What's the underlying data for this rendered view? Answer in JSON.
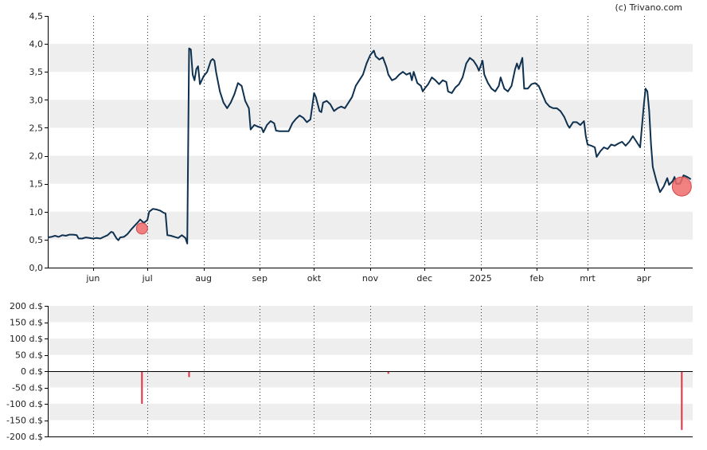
{
  "credit": "(c) Trivano.com",
  "colors": {
    "line": "#0f3150",
    "band": "#eeeeee",
    "marker": "#f06b6b",
    "volume": "#e03040",
    "axis": "#000000",
    "grid": "#333333"
  },
  "chart_data": [
    {
      "type": "line",
      "title": "",
      "xlabel": "",
      "ylabel": "",
      "ylim": [
        0,
        4.5
      ],
      "y_ticks": [
        "0,0",
        "0,5",
        "1,0",
        "1,5",
        "2,0",
        "2,5",
        "3,0",
        "3,5",
        "4,0",
        "4,5"
      ],
      "x_ticks": [
        "jun",
        "jul",
        "aug",
        "sep",
        "okt",
        "nov",
        "dec",
        "2025",
        "feb",
        "mrt",
        "apr"
      ],
      "series": [
        {
          "points": [
            [
              "2024-05-07",
              0.54
            ],
            [
              "2024-05-09",
              0.55
            ],
            [
              "2024-05-11",
              0.57
            ],
            [
              "2024-05-13",
              0.55
            ],
            [
              "2024-05-15",
              0.58
            ],
            [
              "2024-05-17",
              0.57
            ],
            [
              "2024-05-19",
              0.59
            ],
            [
              "2024-05-21",
              0.59
            ],
            [
              "2024-05-23",
              0.58
            ],
            [
              "2024-05-24",
              0.52
            ],
            [
              "2024-05-26",
              0.52
            ],
            [
              "2024-05-28",
              0.54
            ],
            [
              "2024-05-30",
              0.53
            ],
            [
              "2024-06-01",
              0.52
            ],
            [
              "2024-06-03",
              0.53
            ],
            [
              "2024-06-05",
              0.52
            ],
            [
              "2024-06-07",
              0.55
            ],
            [
              "2024-06-09",
              0.58
            ],
            [
              "2024-06-11",
              0.64
            ],
            [
              "2024-06-12",
              0.63
            ],
            [
              "2024-06-14",
              0.52
            ],
            [
              "2024-06-15",
              0.49
            ],
            [
              "2024-06-16",
              0.54
            ],
            [
              "2024-06-18",
              0.55
            ],
            [
              "2024-06-20",
              0.6
            ],
            [
              "2024-06-22",
              0.68
            ],
            [
              "2024-06-24",
              0.75
            ],
            [
              "2024-06-26",
              0.82
            ],
            [
              "2024-06-27",
              0.86
            ],
            [
              "2024-06-29",
              0.8
            ],
            [
              "2024-07-01",
              0.85
            ],
            [
              "2024-07-02",
              1.0
            ],
            [
              "2024-07-04",
              1.05
            ],
            [
              "2024-07-06",
              1.04
            ],
            [
              "2024-07-08",
              1.02
            ],
            [
              "2024-07-10",
              0.98
            ],
            [
              "2024-07-11",
              0.97
            ],
            [
              "2024-07-12",
              0.58
            ],
            [
              "2024-07-14",
              0.57
            ],
            [
              "2024-07-16",
              0.55
            ],
            [
              "2024-07-18",
              0.53
            ],
            [
              "2024-07-20",
              0.58
            ],
            [
              "2024-07-22",
              0.53
            ],
            [
              "2024-07-23",
              0.43
            ],
            [
              "2024-07-24",
              3.92
            ],
            [
              "2024-07-25",
              3.9
            ],
            [
              "2024-07-26",
              3.45
            ],
            [
              "2024-07-27",
              3.35
            ],
            [
              "2024-07-28",
              3.55
            ],
            [
              "2024-07-29",
              3.6
            ],
            [
              "2024-07-30",
              3.28
            ],
            [
              "2024-08-01",
              3.42
            ],
            [
              "2024-08-03",
              3.5
            ],
            [
              "2024-08-05",
              3.7
            ],
            [
              "2024-08-06",
              3.73
            ],
            [
              "2024-08-07",
              3.7
            ],
            [
              "2024-08-08",
              3.48
            ],
            [
              "2024-08-10",
              3.15
            ],
            [
              "2024-08-12",
              2.95
            ],
            [
              "2024-08-14",
              2.85
            ],
            [
              "2024-08-16",
              2.95
            ],
            [
              "2024-08-18",
              3.1
            ],
            [
              "2024-08-20",
              3.3
            ],
            [
              "2024-08-22",
              3.25
            ],
            [
              "2024-08-24",
              2.98
            ],
            [
              "2024-08-26",
              2.85
            ],
            [
              "2024-08-27",
              2.47
            ],
            [
              "2024-08-29",
              2.55
            ],
            [
              "2024-08-31",
              2.52
            ],
            [
              "2024-09-02",
              2.5
            ],
            [
              "2024-09-03",
              2.42
            ],
            [
              "2024-09-05",
              2.55
            ],
            [
              "2024-09-07",
              2.62
            ],
            [
              "2024-09-09",
              2.58
            ],
            [
              "2024-09-10",
              2.45
            ],
            [
              "2024-09-12",
              2.44
            ],
            [
              "2024-09-15",
              2.44
            ],
            [
              "2024-09-17",
              2.44
            ],
            [
              "2024-09-19",
              2.58
            ],
            [
              "2024-09-21",
              2.66
            ],
            [
              "2024-09-23",
              2.72
            ],
            [
              "2024-09-25",
              2.68
            ],
            [
              "2024-09-27",
              2.6
            ],
            [
              "2024-09-29",
              2.65
            ],
            [
              "2024-10-01",
              3.12
            ],
            [
              "2024-10-02",
              3.05
            ],
            [
              "2024-10-04",
              2.8
            ],
            [
              "2024-10-05",
              2.78
            ],
            [
              "2024-10-06",
              2.95
            ],
            [
              "2024-10-08",
              2.98
            ],
            [
              "2024-10-10",
              2.92
            ],
            [
              "2024-10-12",
              2.8
            ],
            [
              "2024-10-14",
              2.85
            ],
            [
              "2024-10-16",
              2.88
            ],
            [
              "2024-10-18",
              2.85
            ],
            [
              "2024-10-20",
              2.95
            ],
            [
              "2024-10-22",
              3.05
            ],
            [
              "2024-10-24",
              3.25
            ],
            [
              "2024-10-26",
              3.35
            ],
            [
              "2024-10-28",
              3.45
            ],
            [
              "2024-10-30",
              3.65
            ],
            [
              "2024-11-01",
              3.8
            ],
            [
              "2024-11-03",
              3.88
            ],
            [
              "2024-11-04",
              3.78
            ],
            [
              "2024-11-06",
              3.72
            ],
            [
              "2024-11-08",
              3.76
            ],
            [
              "2024-11-10",
              3.58
            ],
            [
              "2024-11-11",
              3.45
            ],
            [
              "2024-11-13",
              3.35
            ],
            [
              "2024-11-15",
              3.38
            ],
            [
              "2024-11-17",
              3.45
            ],
            [
              "2024-11-19",
              3.5
            ],
            [
              "2024-11-21",
              3.45
            ],
            [
              "2024-11-23",
              3.48
            ],
            [
              "2024-11-24",
              3.35
            ],
            [
              "2024-11-25",
              3.5
            ],
            [
              "2024-11-27",
              3.3
            ],
            [
              "2024-11-29",
              3.25
            ],
            [
              "2024-11-30",
              3.15
            ],
            [
              "2024-12-01",
              3.2
            ],
            [
              "2024-12-03",
              3.28
            ],
            [
              "2024-12-05",
              3.4
            ],
            [
              "2024-12-07",
              3.35
            ],
            [
              "2024-12-09",
              3.28
            ],
            [
              "2024-12-11",
              3.35
            ],
            [
              "2024-12-13",
              3.32
            ],
            [
              "2024-12-14",
              3.15
            ],
            [
              "2024-12-16",
              3.12
            ],
            [
              "2024-12-18",
              3.22
            ],
            [
              "2024-12-20",
              3.28
            ],
            [
              "2024-12-22",
              3.4
            ],
            [
              "2024-12-24",
              3.65
            ],
            [
              "2024-12-26",
              3.75
            ],
            [
              "2024-12-28",
              3.7
            ],
            [
              "2024-12-30",
              3.6
            ],
            [
              "2024-12-31",
              3.52
            ],
            [
              "2025-01-02",
              3.7
            ],
            [
              "2025-01-03",
              3.45
            ],
            [
              "2025-01-05",
              3.3
            ],
            [
              "2025-01-07",
              3.2
            ],
            [
              "2025-01-09",
              3.15
            ],
            [
              "2025-01-11",
              3.25
            ],
            [
              "2025-01-12",
              3.4
            ],
            [
              "2025-01-14",
              3.2
            ],
            [
              "2025-01-16",
              3.15
            ],
            [
              "2025-01-18",
              3.25
            ],
            [
              "2025-01-20",
              3.55
            ],
            [
              "2025-01-21",
              3.65
            ],
            [
              "2025-01-22",
              3.55
            ],
            [
              "2025-01-24",
              3.75
            ],
            [
              "2025-01-25",
              3.2
            ],
            [
              "2025-01-27",
              3.2
            ],
            [
              "2025-01-29",
              3.28
            ],
            [
              "2025-01-31",
              3.3
            ],
            [
              "2025-02-02",
              3.25
            ],
            [
              "2025-02-04",
              3.1
            ],
            [
              "2025-02-06",
              2.95
            ],
            [
              "2025-02-08",
              2.88
            ],
            [
              "2025-02-10",
              2.85
            ],
            [
              "2025-02-12",
              2.85
            ],
            [
              "2025-02-14",
              2.8
            ],
            [
              "2025-02-16",
              2.7
            ],
            [
              "2025-02-18",
              2.55
            ],
            [
              "2025-02-19",
              2.5
            ],
            [
              "2025-02-21",
              2.6
            ],
            [
              "2025-02-23",
              2.6
            ],
            [
              "2025-02-25",
              2.55
            ],
            [
              "2025-02-27",
              2.62
            ],
            [
              "2025-02-28",
              2.35
            ],
            [
              "2025-03-01",
              2.2
            ],
            [
              "2025-03-03",
              2.18
            ],
            [
              "2025-03-05",
              2.15
            ],
            [
              "2025-03-06",
              1.98
            ],
            [
              "2025-03-08",
              2.08
            ],
            [
              "2025-03-10",
              2.15
            ],
            [
              "2025-03-12",
              2.12
            ],
            [
              "2025-03-14",
              2.2
            ],
            [
              "2025-03-16",
              2.18
            ],
            [
              "2025-03-18",
              2.22
            ],
            [
              "2025-03-20",
              2.25
            ],
            [
              "2025-03-22",
              2.18
            ],
            [
              "2025-03-24",
              2.25
            ],
            [
              "2025-03-26",
              2.35
            ],
            [
              "2025-03-28",
              2.25
            ],
            [
              "2025-03-30",
              2.15
            ],
            [
              "2025-04-01",
              2.9
            ],
            [
              "2025-04-02",
              3.2
            ],
            [
              "2025-04-03",
              3.15
            ],
            [
              "2025-04-04",
              2.8
            ],
            [
              "2025-04-05",
              2.2
            ],
            [
              "2025-04-06",
              1.8
            ],
            [
              "2025-04-08",
              1.55
            ],
            [
              "2025-04-10",
              1.35
            ],
            [
              "2025-04-12",
              1.45
            ],
            [
              "2025-04-14",
              1.6
            ],
            [
              "2025-04-15",
              1.48
            ],
            [
              "2025-04-17",
              1.55
            ],
            [
              "2025-04-18",
              1.62
            ],
            [
              "2025-04-19",
              1.5
            ],
            [
              "2025-04-21",
              1.5
            ],
            [
              "2025-04-23",
              1.65
            ],
            [
              "2025-04-25",
              1.62
            ],
            [
              "2025-04-27",
              1.58
            ]
          ]
        }
      ],
      "markers": [
        {
          "date": "2024-06-28",
          "value": 0.7,
          "size": "small"
        },
        {
          "date": "2025-04-22",
          "value": 1.45,
          "size": "large"
        }
      ]
    },
    {
      "type": "bar",
      "title": "",
      "xlabel": "",
      "ylabel": "",
      "ylim": [
        -200,
        200
      ],
      "y_ticks": [
        "200 d.$",
        "150 d.$",
        "100 d.$",
        "50 d.$",
        "0 d.$",
        "-50 d.$",
        "-100 d.$",
        "-150 d.$",
        "-200 d.$"
      ],
      "bars": [
        {
          "date": "2024-06-28",
          "value": -100
        },
        {
          "date": "2024-07-24",
          "value": -18
        },
        {
          "date": "2024-11-11",
          "value": -8
        },
        {
          "date": "2025-04-22",
          "value": -180
        }
      ]
    }
  ]
}
